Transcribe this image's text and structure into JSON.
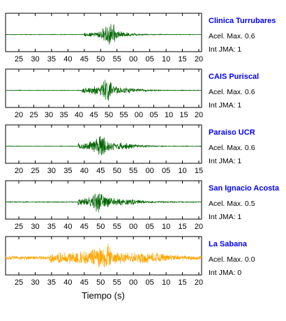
{
  "chart_data": {
    "type": "line",
    "xlabel": "Tiempo (s)",
    "panels": [
      {
        "station": "Clinica Turrubares",
        "accel_label": "Acel. Max. 0.6",
        "jma_label": "Int JMA: 1",
        "color": "#006400",
        "ticks": [
          "25",
          "30",
          "35",
          "40",
          "45",
          "50",
          "55",
          "00",
          "05",
          "10",
          "15",
          "20"
        ],
        "signal": {
          "onset": 40,
          "peak": 54,
          "amplitude": 0.95,
          "end_decay": 63,
          "pre_noise": 0.02,
          "body_noise": 0.12
        }
      },
      {
        "station": "CAIS Puriscal",
        "accel_label": "Acel. Max. 0.6",
        "jma_label": "Int JMA: 1",
        "color": "#006400",
        "ticks": [
          "20",
          "25",
          "30",
          "35",
          "40",
          "45",
          "50",
          "55",
          "00",
          "05",
          "10",
          "15",
          "20"
        ],
        "signal": {
          "onset": 39,
          "peak": 52,
          "amplitude": 0.95,
          "end_decay": 64,
          "pre_noise": 0.02,
          "body_noise": 0.18
        }
      },
      {
        "station": "Paraiso UCR",
        "accel_label": "Acel. Max. 0.6",
        "jma_label": "Int JMA: 1",
        "color": "#006400",
        "ticks": [
          "20",
          "25",
          "30",
          "35",
          "40",
          "45",
          "50",
          "55",
          "00",
          "05",
          "10",
          "15"
        ],
        "signal": {
          "onset": 37,
          "peak": 49,
          "amplitude": 0.95,
          "end_decay": 62,
          "pre_noise": 0.02,
          "body_noise": 0.22
        }
      },
      {
        "station": "San Ignacio Acosta",
        "accel_label": "Acel. Max. 0.5",
        "jma_label": "Int JMA: 1",
        "color": "#006400",
        "ticks": [
          "25",
          "30",
          "35",
          "40",
          "45",
          "50",
          "55",
          "00",
          "05",
          "10",
          "15",
          "20"
        ],
        "signal": {
          "onset": 37,
          "peak": 48,
          "amplitude": 0.95,
          "end_decay": 64,
          "pre_noise": 0.03,
          "body_noise": 0.22
        }
      },
      {
        "station": "La Sabana",
        "accel_label": "Acel. Max. 0.0",
        "jma_label": "Int JMA: 0",
        "color": "#ffa500",
        "ticks": [
          "25",
          "30",
          "35",
          "40",
          "45",
          "50",
          "55",
          "00",
          "05",
          "10",
          "15",
          "20"
        ],
        "signal": {
          "onset": 22,
          "peak": 52,
          "amplitude": 0.95,
          "end_decay": 78,
          "pre_noise": 0.12,
          "body_noise": 0.35
        }
      }
    ]
  }
}
